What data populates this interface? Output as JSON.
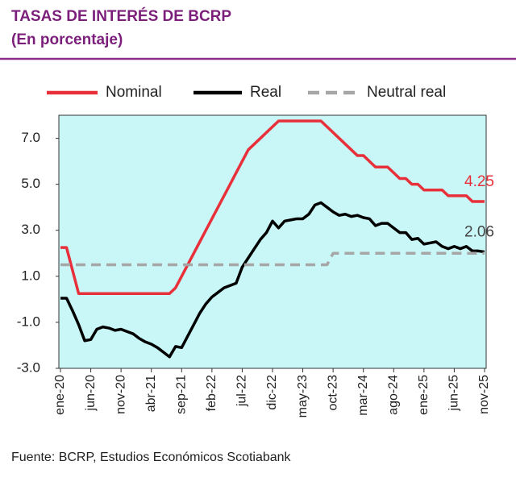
{
  "chart_data": {
    "type": "line",
    "title": "TASAS DE INTERÉS DE BCRP",
    "subtitle": "(En porcentaje)",
    "source": "Fuente: BCRP, Estudios Económicos Scotiabank",
    "categories": [
      "ene-20",
      null,
      null,
      null,
      null,
      "jun-20",
      null,
      null,
      null,
      null,
      "nov-20",
      null,
      null,
      null,
      null,
      "abr-21",
      null,
      null,
      null,
      null,
      "sep-21",
      null,
      null,
      null,
      null,
      "feb-22",
      null,
      null,
      null,
      null,
      "jul-22",
      null,
      null,
      null,
      null,
      "dic-22",
      null,
      null,
      null,
      null,
      "may-23",
      null,
      null,
      null,
      null,
      "oct-23",
      null,
      null,
      null,
      null,
      "mar-24",
      null,
      null,
      null,
      null,
      "ago-24",
      null,
      null,
      null,
      null,
      "ene-25",
      null,
      null,
      null,
      null,
      "jun-25",
      null,
      null,
      null,
      null,
      "nov-25"
    ],
    "series": [
      {
        "name": "Nominal",
        "color": "#e8303a",
        "dashed": false,
        "values": [
          2.25,
          2.25,
          1.25,
          0.25,
          0.25,
          0.25,
          0.25,
          0.25,
          0.25,
          0.25,
          0.25,
          0.25,
          0.25,
          0.25,
          0.25,
          0.25,
          0.25,
          0.25,
          0.25,
          0.5,
          1.0,
          1.5,
          2.0,
          2.5,
          3.0,
          3.5,
          4.0,
          4.5,
          5.0,
          5.5,
          6.0,
          6.5,
          6.75,
          7.0,
          7.25,
          7.5,
          7.75,
          7.75,
          7.75,
          7.75,
          7.75,
          7.75,
          7.75,
          7.75,
          7.5,
          7.25,
          7.0,
          6.75,
          6.5,
          6.25,
          6.25,
          6.0,
          5.75,
          5.75,
          5.75,
          5.5,
          5.25,
          5.25,
          5.0,
          5.0,
          4.75,
          4.75,
          4.75,
          4.75,
          4.5,
          4.5,
          4.5,
          4.5,
          4.25,
          4.25,
          4.25
        ]
      },
      {
        "name": "Real",
        "color": "#000000",
        "dashed": false,
        "values": [
          0.05,
          0.05,
          -0.5,
          -1.1,
          -1.8,
          -1.75,
          -1.3,
          -1.2,
          -1.25,
          -1.35,
          -1.3,
          -1.4,
          -1.5,
          -1.7,
          -1.85,
          -1.95,
          -2.1,
          -2.3,
          -2.5,
          -2.05,
          -2.1,
          -1.6,
          -1.1,
          -0.6,
          -0.2,
          0.1,
          0.3,
          0.5,
          0.6,
          0.7,
          1.4,
          1.8,
          2.2,
          2.6,
          2.9,
          3.4,
          3.1,
          3.4,
          3.45,
          3.5,
          3.5,
          3.7,
          4.1,
          4.2,
          4.0,
          3.8,
          3.65,
          3.7,
          3.6,
          3.65,
          3.55,
          3.5,
          3.2,
          3.3,
          3.3,
          3.1,
          2.9,
          2.9,
          2.6,
          2.65,
          2.4,
          2.45,
          2.5,
          2.3,
          2.2,
          2.3,
          2.2,
          2.3,
          2.1,
          2.1,
          2.06
        ]
      },
      {
        "name": "Neutral real",
        "color": "#a6a6a6",
        "dashed": true,
        "values": [
          1.5,
          1.5,
          1.5,
          1.5,
          1.5,
          1.5,
          1.5,
          1.5,
          1.5,
          1.5,
          1.5,
          1.5,
          1.5,
          1.5,
          1.5,
          1.5,
          1.5,
          1.5,
          1.5,
          1.5,
          1.5,
          1.5,
          1.5,
          1.5,
          1.5,
          1.5,
          1.5,
          1.5,
          1.5,
          1.5,
          1.5,
          1.5,
          1.5,
          1.5,
          1.5,
          1.5,
          1.5,
          1.5,
          1.5,
          1.5,
          1.5,
          1.5,
          1.5,
          1.5,
          1.5,
          2.0,
          2.0,
          2.0,
          2.0,
          2.0,
          2.0,
          2.0,
          2.0,
          2.0,
          2.0,
          2.0,
          2.0,
          2.0,
          2.0,
          2.0,
          2.0,
          2.0,
          2.0,
          2.0,
          2.0,
          2.0,
          2.0,
          2.0,
          2.0,
          2.0,
          2.0
        ]
      }
    ],
    "ylim": [
      -3,
      8
    ],
    "yticks": [
      {
        "value": -3,
        "label": "-3.0"
      },
      {
        "value": -1,
        "label": "-1.0"
      },
      {
        "value": 1,
        "label": "1.0"
      },
      {
        "value": 3,
        "label": "3.0"
      },
      {
        "value": 5,
        "label": "5.0"
      },
      {
        "value": 7,
        "label": "7.0"
      }
    ],
    "grid": false,
    "background": "#c9f7f7",
    "end_labels": [
      0,
      1
    ]
  }
}
